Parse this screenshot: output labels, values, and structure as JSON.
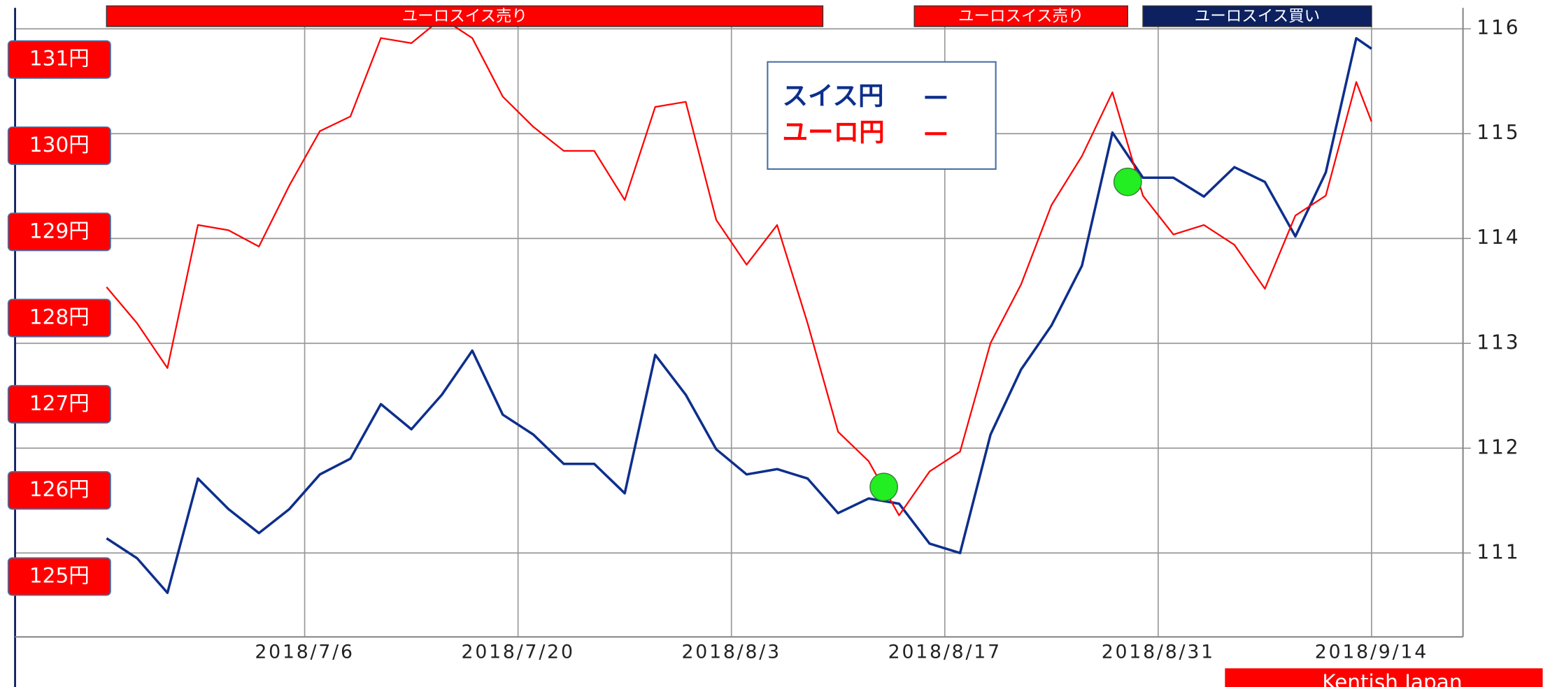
{
  "chart_data": {
    "type": "line",
    "x": [
      "2018-06-23",
      "2018-06-25",
      "2018-06-27",
      "2018-06-29",
      "2018-07-01",
      "2018-07-03",
      "2018-07-05",
      "2018-07-07",
      "2018-07-09",
      "2018-07-11",
      "2018-07-13",
      "2018-07-15",
      "2018-07-17",
      "2018-07-19",
      "2018-07-21",
      "2018-07-23",
      "2018-07-25",
      "2018-07-27",
      "2018-07-29",
      "2018-07-31",
      "2018-08-02",
      "2018-08-04",
      "2018-08-06",
      "2018-08-08",
      "2018-08-10",
      "2018-08-12",
      "2018-08-14",
      "2018-08-16",
      "2018-08-18",
      "2018-08-20",
      "2018-08-22",
      "2018-08-24",
      "2018-08-26",
      "2018-08-28",
      "2018-08-30",
      "2018-09-01",
      "2018-09-03",
      "2018-09-05",
      "2018-09-07",
      "2018-09-09",
      "2018-09-11",
      "2018-09-13",
      "2018-09-14"
    ],
    "series": [
      {
        "name": "スイス円",
        "color": "#0d2f8c",
        "axis": "y",
        "values": [
          111.14,
          110.95,
          110.62,
          111.71,
          111.42,
          111.19,
          111.42,
          111.75,
          111.9,
          112.42,
          112.18,
          112.51,
          112.93,
          112.32,
          112.13,
          111.85,
          111.85,
          111.57,
          112.89,
          112.51,
          111.99,
          111.75,
          111.8,
          111.71,
          111.38,
          111.52,
          111.47,
          111.09,
          111.0,
          112.13,
          112.75,
          113.17,
          113.74,
          115.01,
          114.58,
          114.58,
          114.4,
          114.68,
          114.54,
          114.02,
          114.63,
          115.91,
          115.81
        ]
      },
      {
        "name": "ユーロ円",
        "color": "#ff0000",
        "axis": "y2",
        "values": [
          128.36,
          127.94,
          127.42,
          129.08,
          129.02,
          128.83,
          129.54,
          130.17,
          130.34,
          131.25,
          131.19,
          131.48,
          131.25,
          130.57,
          130.22,
          129.94,
          129.94,
          129.37,
          130.45,
          130.51,
          129.14,
          128.62,
          129.08,
          127.94,
          126.68,
          126.34,
          125.71,
          126.22,
          126.45,
          127.71,
          128.39,
          129.31,
          129.88,
          130.62,
          129.42,
          128.97,
          129.08,
          128.85,
          128.34,
          129.19,
          129.42,
          130.74,
          130.28
        ]
      }
    ],
    "xlim": [
      "2018-06-17",
      "2018-09-20"
    ],
    "xticks": [
      {
        "value": "2018-07-06",
        "label": "2018/7/6"
      },
      {
        "value": "2018-07-20",
        "label": "2018/7/20"
      },
      {
        "value": "2018-08-03",
        "label": "2018/8/3"
      },
      {
        "value": "2018-08-17",
        "label": "2018/8/17"
      },
      {
        "value": "2018-08-31",
        "label": "2018/8/31"
      },
      {
        "value": "2018-09-14",
        "label": "2018/9/14"
      }
    ],
    "ylim": [
      110.2,
      116.2
    ],
    "yticks": [
      111,
      112,
      113,
      114,
      115,
      116
    ],
    "y2lim": [
      124.3,
      131.6
    ],
    "y2ticks": [
      {
        "value": 125,
        "label": "125円"
      },
      {
        "value": 126,
        "label": "126円"
      },
      {
        "value": 127,
        "label": "127円"
      },
      {
        "value": 128,
        "label": "128円"
      },
      {
        "value": 129,
        "label": "129円"
      },
      {
        "value": 130,
        "label": "130円"
      },
      {
        "value": 131,
        "label": "131円"
      }
    ],
    "grid": true,
    "markers": [
      {
        "x": "2018-08-13",
        "value": 111.63,
        "color": "#22ee22"
      },
      {
        "x": "2018-08-29",
        "value": 114.54,
        "color": "#22ee22"
      }
    ],
    "signals": [
      {
        "label": "ユーロスイス売り",
        "start": "2018-06-23",
        "end": "2018-08-09",
        "color": "#ff0000"
      },
      {
        "label": "ユーロスイス売り",
        "start": "2018-08-15",
        "end": "2018-08-29",
        "color": "#ff0000"
      },
      {
        "label": "ユーロスイス買い",
        "start": "2018-08-30",
        "end": "2018-09-14",
        "color": "#0d2060"
      }
    ],
    "footer": "Kentish Japan"
  }
}
